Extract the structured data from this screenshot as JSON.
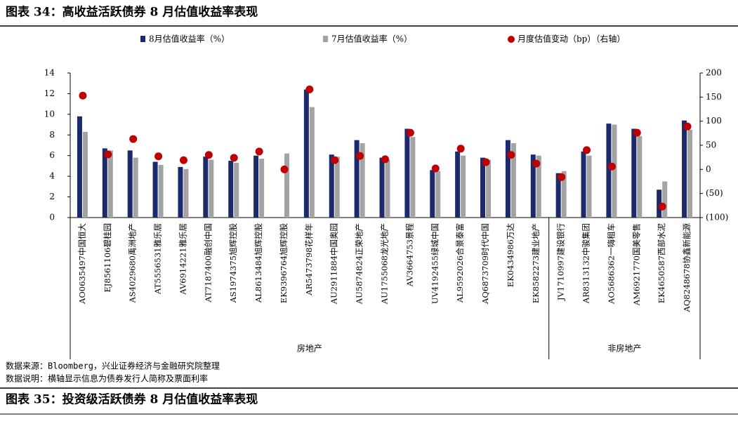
{
  "chart_data": {
    "type": "bar",
    "title": "图表 34：高收益活跃债券 8 月估值收益率表现",
    "next_title": "图表 35：投资级活跃债券 8 月估值收益率表现",
    "notes": [
      "数据来源：Bloomberg，兴业证券经济与金融研究院整理",
      "数据说明：横轴显示信息为债券发行人简称及票面利率"
    ],
    "categories": [
      "AO0635497中国恒大",
      "EJ8561106碧桂园",
      "AS4029680禹洲地产",
      "AT5556531雅乐居",
      "AV6914221雅乐居",
      "AT7187400融创中国",
      "AS1974375旭辉控股",
      "AL8613484旭辉控股",
      "EK9396764旭辉控股",
      "AR5473798花样年",
      "AU2911884中国奥园",
      "AU5874824正荣地产",
      "AU1755068龙光地产",
      "AV3664753景程",
      "UV4192455绿城中国",
      "AL9592026合景泰富",
      "AQ6873709时代中国",
      "EK0434986万达",
      "EK8582273建业地产",
      "JV1710997建设银行",
      "AR8313132中骏集团",
      "AO5686362一嗨租车",
      "AM6921770国美零售",
      "EK4650587西部水泥",
      "AQ8248678协鑫新能源"
    ],
    "groups": [
      {
        "name": "房地产",
        "count": 19
      },
      {
        "name": "非房地产",
        "count": 6
      }
    ],
    "series": [
      {
        "name": "8月估值收益率（%）",
        "color": "#1c2a6b",
        "type": "bar",
        "values": [
          9.8,
          6.7,
          6.5,
          5.4,
          4.9,
          5.9,
          5.5,
          6.0,
          null,
          12.4,
          6.1,
          7.5,
          5.8,
          8.6,
          4.6,
          6.4,
          5.8,
          7.5,
          6.1,
          4.3,
          6.4,
          9.1,
          8.6,
          2.7,
          9.4
        ]
      },
      {
        "name": "7月估值收益率（%）",
        "color": "#a3a3a3",
        "type": "bar",
        "values": [
          8.3,
          6.5,
          5.8,
          5.1,
          4.7,
          5.6,
          5.3,
          5.7,
          6.2,
          10.7,
          5.9,
          7.2,
          5.6,
          7.8,
          4.5,
          6.0,
          5.6,
          7.2,
          6.0,
          4.5,
          6.0,
          9.0,
          7.9,
          3.5,
          8.5
        ]
      },
      {
        "name": "月度估值变动（bp）（右轴）",
        "color": "#c00000",
        "type": "scatter",
        "axis": "y2",
        "values": [
          153,
          31,
          63,
          27,
          19,
          30,
          24,
          37,
          0,
          166,
          19,
          28,
          21,
          76,
          2,
          43,
          15,
          30,
          12,
          -16,
          40,
          6,
          76,
          -77,
          89
        ]
      }
    ],
    "ylim": [
      0,
      14
    ],
    "yticks": [
      0,
      2,
      4,
      6,
      8,
      10,
      12,
      14
    ],
    "y2lim": [
      -100,
      200
    ],
    "y2ticks": [
      {
        "value": -100,
        "label": "(100)"
      },
      {
        "value": -50,
        "label": "(50)"
      },
      0,
      50,
      100,
      150,
      200
    ],
    "y2_tick_color": "#c00000"
  }
}
